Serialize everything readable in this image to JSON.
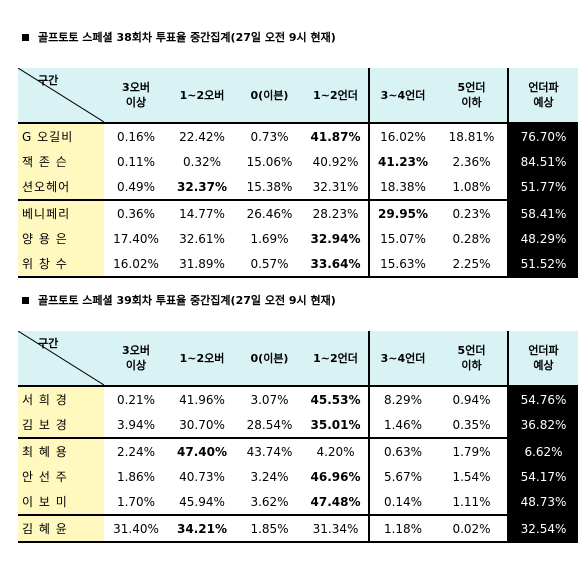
{
  "sections": [
    {
      "title": "골프토토 스페셜 38회차 투표율 중간집계(27일 오전 9시 현재)",
      "corner_label": "구간",
      "headers": [
        "3오버\n이상",
        "1~2오버",
        "0(이븐)",
        "1~2언더",
        "3~4언더",
        "5언더\n이하",
        "언더파\n예상"
      ],
      "rows": [
        {
          "name": "G 오길비",
          "values": [
            "0.16%",
            "22.42%",
            "0.73%",
            "41.87%",
            "16.02%",
            "18.81%",
            "76.70%"
          ]
        },
        {
          "name": "잭 존 슨",
          "values": [
            "0.11%",
            "0.32%",
            "15.06%",
            "40.92%",
            "41.23%",
            "2.36%",
            "84.51%"
          ]
        },
        {
          "name": "션오헤어",
          "values": [
            "0.49%",
            "32.37%",
            "15.38%",
            "32.31%",
            "18.38%",
            "1.08%",
            "51.77%"
          ]
        },
        {
          "name": "베니페리",
          "values": [
            "0.36%",
            "14.77%",
            "26.46%",
            "28.23%",
            "29.95%",
            "0.23%",
            "58.41%"
          ]
        },
        {
          "name": "양 용 은",
          "values": [
            "17.40%",
            "32.61%",
            "1.69%",
            "32.94%",
            "15.07%",
            "0.28%",
            "48.29%"
          ]
        },
        {
          "name": "위 창 수",
          "values": [
            "16.02%",
            "31.89%",
            "0.57%",
            "33.64%",
            "15.63%",
            "2.25%",
            "51.52%"
          ]
        }
      ]
    },
    {
      "title": "골프토토 스페셜 39회차 투표율 중간집계(27일 오전 9시 현재)",
      "corner_label": "구간",
      "headers": [
        "3오버\n이상",
        "1~2오버",
        "0(이븐)",
        "1~2언더",
        "3~4언더",
        "5언더\n이하",
        "언더파\n예상"
      ],
      "rows": [
        {
          "name": "서 희 경",
          "values": [
            "0.21%",
            "41.96%",
            "3.07%",
            "45.53%",
            "8.29%",
            "0.94%",
            "54.76%"
          ]
        },
        {
          "name": "김 보 경",
          "values": [
            "3.94%",
            "30.70%",
            "28.54%",
            "35.01%",
            "1.46%",
            "0.35%",
            "36.82%"
          ]
        },
        {
          "name": "최 혜 용",
          "values": [
            "2.24%",
            "47.40%",
            "43.74%",
            "4.20%",
            "0.63%",
            "1.79%",
            "6.62%"
          ]
        },
        {
          "name": "안 선 주",
          "values": [
            "1.86%",
            "40.73%",
            "3.24%",
            "46.96%",
            "5.67%",
            "1.54%",
            "54.17%"
          ]
        },
        {
          "name": "이 보 미",
          "values": [
            "1.70%",
            "45.94%",
            "3.62%",
            "47.48%",
            "0.14%",
            "1.11%",
            "48.73%"
          ]
        },
        {
          "name": "김 혜 윤",
          "values": [
            "31.40%",
            "34.21%",
            "1.85%",
            "31.34%",
            "1.18%",
            "0.02%",
            "32.54%"
          ]
        }
      ]
    }
  ]
}
